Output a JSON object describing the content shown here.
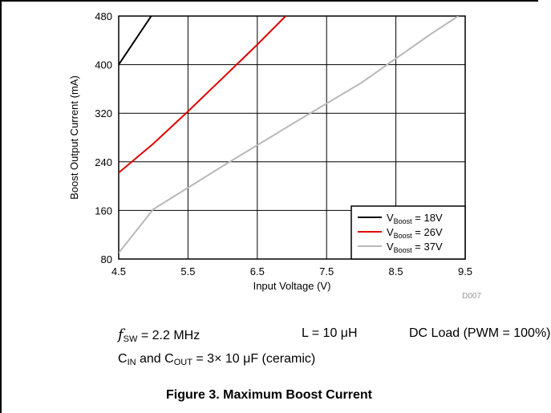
{
  "chart_data": {
    "type": "line",
    "xlabel": "Input Voltage (V)",
    "ylabel": "Boost Output Current (mA)",
    "xlim": [
      4.5,
      9.5
    ],
    "ylim": [
      80,
      480
    ],
    "xticks": [
      "4.5",
      "5.5",
      "6.5",
      "7.5",
      "8.5",
      "9.5"
    ],
    "yticks": [
      "80",
      "160",
      "240",
      "320",
      "400",
      "480"
    ],
    "grid": true,
    "legend_position": "bottom-right",
    "watermark": "D007",
    "series": [
      {
        "name": "V_Boost = 18V",
        "sub": "Boost",
        "label_pre": "V",
        "label_post": " = 18V",
        "color": "#000000",
        "x": [
          4.5,
          4.97
        ],
        "y": [
          400,
          480
        ]
      },
      {
        "name": "V_Boost = 26V",
        "sub": "Boost",
        "label_pre": "V",
        "label_post": " = 26V",
        "color": "#e00000",
        "x": [
          4.5,
          5.0,
          5.5,
          6.0,
          6.5,
          6.91
        ],
        "y": [
          222,
          270,
          323,
          378,
          433,
          480
        ]
      },
      {
        "name": "V_Boost = 37V",
        "sub": "Boost",
        "label_pre": "V",
        "label_post": " = 37V",
        "color": "#b8b8b8",
        "x": [
          4.5,
          5.0,
          6.0,
          7.0,
          8.0,
          8.5,
          9.0,
          9.4
        ],
        "y": [
          90,
          162,
          233,
          302,
          370,
          410,
          450,
          480
        ]
      }
    ]
  },
  "conditions": {
    "fsw_symbol": "f",
    "fsw_sub": "SW",
    "fsw_value": " = 2.2 MHz",
    "inductor": "L = 10 μH",
    "load": "DC Load (PWM = 100%)",
    "cin": "C",
    "cin_sub": "IN",
    "and_text": " and C",
    "cout_sub": "OUT",
    "cap_value": " = 3× 10 μF (ceramic)"
  },
  "caption": "Figure 3. Maximum Boost Current"
}
